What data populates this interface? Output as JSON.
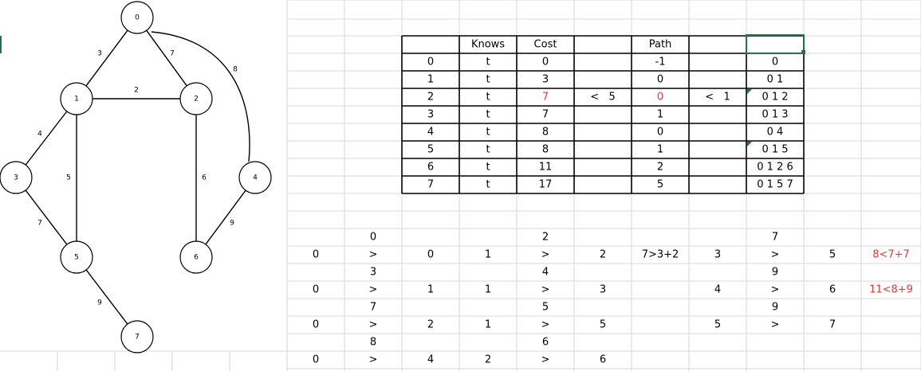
{
  "graph": {
    "nodes": [
      {
        "id": "0",
        "label": "0"
      },
      {
        "id": "1",
        "label": "1"
      },
      {
        "id": "2",
        "label": "2"
      },
      {
        "id": "3",
        "label": "3"
      },
      {
        "id": "4",
        "label": "4"
      },
      {
        "id": "5",
        "label": "5"
      },
      {
        "id": "6",
        "label": "6"
      },
      {
        "id": "7",
        "label": "7"
      }
    ],
    "edges": [
      {
        "from": "0",
        "to": "1",
        "weight": "3"
      },
      {
        "from": "0",
        "to": "2",
        "weight": "7"
      },
      {
        "from": "0",
        "to": "4",
        "weight": "8"
      },
      {
        "from": "1",
        "to": "2",
        "weight": "2"
      },
      {
        "from": "1",
        "to": "3",
        "weight": "4"
      },
      {
        "from": "1",
        "to": "5",
        "weight": "5"
      },
      {
        "from": "2",
        "to": "6",
        "weight": "6"
      },
      {
        "from": "3",
        "to": "5",
        "weight": "7"
      },
      {
        "from": "4",
        "to": "6",
        "weight": "9"
      },
      {
        "from": "5",
        "to": "7",
        "weight": "9"
      }
    ]
  },
  "table": {
    "headers": [
      "",
      "Knows",
      "Cost",
      "",
      "Path",
      "",
      ""
    ],
    "rows": [
      [
        "0",
        "t",
        "0",
        "",
        "-1",
        "",
        "0"
      ],
      [
        "1",
        "t",
        "3",
        "",
        "0",
        "",
        "0 1"
      ],
      [
        "2",
        "t",
        "7",
        "<   5",
        "0",
        "<   1",
        "0 1 2"
      ],
      [
        "3",
        "t",
        "7",
        "",
        "1",
        "",
        "0 1 3"
      ],
      [
        "4",
        "t",
        "8",
        "",
        "0",
        "",
        "0 4"
      ],
      [
        "5",
        "t",
        "8",
        "",
        "1",
        "",
        "0 1 5"
      ],
      [
        "6",
        "t",
        "11",
        "",
        "2",
        "",
        "0 1 2 6"
      ],
      [
        "7",
        "t",
        "17",
        "",
        "5",
        "",
        "0 1 5 7"
      ]
    ],
    "red_cells": [
      [
        2,
        2
      ],
      [
        2,
        4
      ]
    ],
    "accent_color": "#e03a3a"
  },
  "notes": [
    {
      "col": 1,
      "row": 0,
      "text": "0"
    },
    {
      "col": 4,
      "row": 0,
      "text": "2"
    },
    {
      "col": 8,
      "row": 0,
      "text": "7"
    },
    {
      "col": 0,
      "row": 1,
      "text": "0"
    },
    {
      "col": 1,
      "row": 1,
      "text": ">"
    },
    {
      "col": 2,
      "row": 1,
      "text": "0"
    },
    {
      "col": 3,
      "row": 1,
      "text": "1"
    },
    {
      "col": 4,
      "row": 1,
      "text": ">"
    },
    {
      "col": 5,
      "row": 1,
      "text": "2"
    },
    {
      "col": 6,
      "row": 1,
      "text": "7>3+2"
    },
    {
      "col": 7,
      "row": 1,
      "text": "3"
    },
    {
      "col": 8,
      "row": 1,
      "text": ">"
    },
    {
      "col": 9,
      "row": 1,
      "text": "5"
    },
    {
      "col": 10,
      "row": 1,
      "text": "8<7+7",
      "red": true
    },
    {
      "col": 1,
      "row": 2,
      "text": "3"
    },
    {
      "col": 4,
      "row": 2,
      "text": "4"
    },
    {
      "col": 8,
      "row": 2,
      "text": "9"
    },
    {
      "col": 0,
      "row": 3,
      "text": "0"
    },
    {
      "col": 1,
      "row": 3,
      "text": ">"
    },
    {
      "col": 2,
      "row": 3,
      "text": "1"
    },
    {
      "col": 3,
      "row": 3,
      "text": "1"
    },
    {
      "col": 4,
      "row": 3,
      "text": ">"
    },
    {
      "col": 5,
      "row": 3,
      "text": "3"
    },
    {
      "col": 7,
      "row": 3,
      "text": "4"
    },
    {
      "col": 8,
      "row": 3,
      "text": ">"
    },
    {
      "col": 9,
      "row": 3,
      "text": "6"
    },
    {
      "col": 10,
      "row": 3,
      "text": "11<8+9",
      "red": true
    },
    {
      "col": 1,
      "row": 4,
      "text": "7"
    },
    {
      "col": 4,
      "row": 4,
      "text": "5"
    },
    {
      "col": 8,
      "row": 4,
      "text": "9"
    },
    {
      "col": 0,
      "row": 5,
      "text": "0"
    },
    {
      "col": 1,
      "row": 5,
      "text": ">"
    },
    {
      "col": 2,
      "row": 5,
      "text": "2"
    },
    {
      "col": 3,
      "row": 5,
      "text": "1"
    },
    {
      "col": 4,
      "row": 5,
      "text": ">"
    },
    {
      "col": 5,
      "row": 5,
      "text": "5"
    },
    {
      "col": 7,
      "row": 5,
      "text": "5"
    },
    {
      "col": 8,
      "row": 5,
      "text": ">"
    },
    {
      "col": 9,
      "row": 5,
      "text": "7"
    },
    {
      "col": 1,
      "row": 6,
      "text": "8"
    },
    {
      "col": 4,
      "row": 6,
      "text": "6"
    },
    {
      "col": 0,
      "row": 7,
      "text": "0"
    },
    {
      "col": 1,
      "row": 7,
      "text": ">"
    },
    {
      "col": 2,
      "row": 7,
      "text": "4"
    },
    {
      "col": 3,
      "row": 7,
      "text": "2"
    },
    {
      "col": 4,
      "row": 7,
      "text": ">"
    },
    {
      "col": 5,
      "row": 7,
      "text": "6"
    }
  ],
  "colors": {
    "gridline": "#d8d8d8",
    "selection": "#217346",
    "red_text": "#e03a3a"
  }
}
